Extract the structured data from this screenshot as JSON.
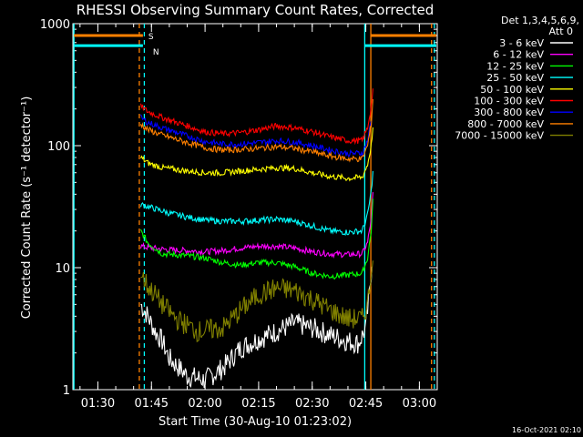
{
  "chart_data": {
    "type": "line",
    "title": "RHESSI Observing Summary Count Rates, Corrected",
    "xlabel": "Start Time (30-Aug-10 01:23:02)",
    "ylabel": "Corrected Count Rate (s⁻¹ detector⁻¹)",
    "yscale": "log",
    "ylim": [
      1,
      1000
    ],
    "xlim_minutes": [
      83,
      185
    ],
    "x_ticks": [
      {
        "m": 90,
        "label": "01:30"
      },
      {
        "m": 105,
        "label": "01:45"
      },
      {
        "m": 120,
        "label": "02:00"
      },
      {
        "m": 135,
        "label": "02:15"
      },
      {
        "m": 150,
        "label": "02:30"
      },
      {
        "m": 165,
        "label": "02:45"
      },
      {
        "m": 180,
        "label": "03:00"
      }
    ],
    "y_ticks": [
      {
        "v": 1,
        "label": "1"
      },
      {
        "v": 10,
        "label": "10"
      },
      {
        "v": 100,
        "label": "100"
      },
      {
        "v": 1000,
        "label": "1000"
      }
    ],
    "legend_title": [
      "Det 1,3,4,5,6,9,",
      "Att 0"
    ],
    "legend_position": "right",
    "series": [
      {
        "name": "3 - 6 keV",
        "color": "#ffffff",
        "points": [
          [
            102,
            5
          ],
          [
            104,
            4
          ],
          [
            106,
            3
          ],
          [
            108,
            2.5
          ],
          [
            110,
            1.8
          ],
          [
            115,
            1.3
          ],
          [
            120,
            1.2
          ],
          [
            125,
            1.5
          ],
          [
            130,
            2.2
          ],
          [
            135,
            2.6
          ],
          [
            140,
            3.0
          ],
          [
            145,
            3.5
          ],
          [
            150,
            3.2
          ],
          [
            155,
            2.8
          ],
          [
            160,
            2.5
          ],
          [
            163,
            2.4
          ],
          [
            165,
            3.2
          ],
          [
            166,
            6
          ],
          [
            166.8,
            12
          ]
        ]
      },
      {
        "name": "6 - 12 keV",
        "color": "#ff00ff",
        "points": [
          [
            102,
            15
          ],
          [
            105,
            14.5
          ],
          [
            110,
            14
          ],
          [
            115,
            13.8
          ],
          [
            120,
            13.5
          ],
          [
            125,
            13.8
          ],
          [
            130,
            14.5
          ],
          [
            135,
            15
          ],
          [
            140,
            15
          ],
          [
            145,
            14.5
          ],
          [
            150,
            13.5
          ],
          [
            155,
            13
          ],
          [
            160,
            12.8
          ],
          [
            164,
            13
          ],
          [
            165.5,
            16
          ],
          [
            166.5,
            25
          ],
          [
            167,
            40
          ]
        ]
      },
      {
        "name": "12 - 25 keV",
        "color": "#00ff00",
        "points": [
          [
            102,
            20
          ],
          [
            104,
            16
          ],
          [
            108,
            13
          ],
          [
            115,
            12.5
          ],
          [
            120,
            12
          ],
          [
            125,
            11
          ],
          [
            130,
            10.5
          ],
          [
            135,
            11
          ],
          [
            140,
            11
          ],
          [
            145,
            10.2
          ],
          [
            150,
            9
          ],
          [
            155,
            8.5
          ],
          [
            160,
            8.7
          ],
          [
            164,
            9
          ],
          [
            165.5,
            12
          ],
          [
            166.5,
            20
          ],
          [
            167,
            35
          ]
        ]
      },
      {
        "name": "25 - 50 keV",
        "color": "#00ffff",
        "points": [
          [
            102,
            33
          ],
          [
            105,
            31
          ],
          [
            110,
            28
          ],
          [
            115,
            26
          ],
          [
            120,
            24.5
          ],
          [
            125,
            24
          ],
          [
            130,
            24
          ],
          [
            135,
            24.5
          ],
          [
            140,
            25
          ],
          [
            145,
            24
          ],
          [
            150,
            22
          ],
          [
            155,
            20
          ],
          [
            160,
            19.5
          ],
          [
            164,
            20
          ],
          [
            165.5,
            27
          ],
          [
            166.5,
            42
          ],
          [
            167,
            60
          ]
        ]
      },
      {
        "name": "50 - 100 keV",
        "color": "#ffff00",
        "points": [
          [
            102,
            80
          ],
          [
            104,
            72
          ],
          [
            108,
            66
          ],
          [
            115,
            62
          ],
          [
            120,
            60
          ],
          [
            125,
            60
          ],
          [
            130,
            62
          ],
          [
            135,
            64
          ],
          [
            140,
            66
          ],
          [
            145,
            65
          ],
          [
            150,
            60
          ],
          [
            155,
            56
          ],
          [
            160,
            54
          ],
          [
            164,
            55
          ],
          [
            165.5,
            70
          ],
          [
            166.5,
            100
          ],
          [
            167,
            140
          ]
        ]
      },
      {
        "name": "100 - 300 keV",
        "color": "#ff0000",
        "points": [
          [
            102,
            210
          ],
          [
            104,
            190
          ],
          [
            108,
            170
          ],
          [
            115,
            145
          ],
          [
            120,
            130
          ],
          [
            125,
            125
          ],
          [
            130,
            128
          ],
          [
            135,
            135
          ],
          [
            140,
            145
          ],
          [
            145,
            140
          ],
          [
            150,
            130
          ],
          [
            155,
            118
          ],
          [
            160,
            110
          ],
          [
            164,
            110
          ],
          [
            165.5,
            140
          ],
          [
            166.5,
            210
          ],
          [
            167,
            290
          ]
        ]
      },
      {
        "name": "300 - 800 keV",
        "color": "#0000ff",
        "points": [
          [
            102,
            170
          ],
          [
            104,
            155
          ],
          [
            108,
            140
          ],
          [
            115,
            120
          ],
          [
            120,
            108
          ],
          [
            125,
            103
          ],
          [
            130,
            103
          ],
          [
            135,
            106
          ],
          [
            140,
            110
          ],
          [
            145,
            107
          ],
          [
            150,
            100
          ],
          [
            155,
            92
          ],
          [
            160,
            86
          ],
          [
            164,
            87
          ],
          [
            165.5,
            110
          ],
          [
            166.5,
            160
          ]
        ]
      },
      {
        "name": "800 - 7000 keV",
        "color": "#ff8000",
        "points": [
          [
            102,
            150
          ],
          [
            104,
            135
          ],
          [
            108,
            122
          ],
          [
            115,
            106
          ],
          [
            120,
            96
          ],
          [
            125,
            92
          ],
          [
            130,
            93
          ],
          [
            135,
            95
          ],
          [
            140,
            98
          ],
          [
            145,
            95
          ],
          [
            150,
            89
          ],
          [
            155,
            82
          ],
          [
            160,
            78
          ],
          [
            164,
            78
          ],
          [
            165.5,
            100
          ],
          [
            166.5,
            150
          ],
          [
            167,
            240
          ]
        ]
      },
      {
        "name": "7000 - 15000 keV",
        "color": "#808000",
        "points": [
          [
            102,
            9
          ],
          [
            104,
            7
          ],
          [
            106,
            6
          ],
          [
            108,
            5
          ],
          [
            112,
            3.8
          ],
          [
            118,
            3.0
          ],
          [
            125,
            3.2
          ],
          [
            130,
            4.5
          ],
          [
            135,
            6
          ],
          [
            140,
            6.8
          ],
          [
            145,
            6.5
          ],
          [
            150,
            5.5
          ],
          [
            155,
            4.5
          ],
          [
            160,
            3.8
          ],
          [
            164,
            3.8
          ],
          [
            165.5,
            5
          ],
          [
            166.5,
            9
          ],
          [
            167,
            14
          ]
        ]
      }
    ],
    "flags": [
      {
        "label": "S",
        "color": "#ff8000",
        "bars": [
          [
            83.3,
            102.6
          ],
          [
            166.4,
            185
          ]
        ],
        "value": 800
      },
      {
        "label": "N",
        "color": "#00ffff",
        "bars": [
          [
            83.3,
            102.6
          ],
          [
            164.7,
            185
          ]
        ],
        "value": 660
      }
    ],
    "vlines": [
      {
        "m": 83.3,
        "color": "#00ffff",
        "style": "solid"
      },
      {
        "m": 101.6,
        "color": "#ff8000",
        "style": "dashed"
      },
      {
        "m": 103.0,
        "color": "#00ffff",
        "style": "dashed"
      },
      {
        "m": 164.7,
        "color": "#00ffff",
        "style": "solid"
      },
      {
        "m": 166.4,
        "color": "#ff8000",
        "style": "solid"
      },
      {
        "m": 183.4,
        "color": "#ff8000",
        "style": "dashed"
      },
      {
        "m": 184.2,
        "color": "#00ffff",
        "style": "dashed"
      }
    ]
  },
  "footer": {
    "timestamp": "16-Oct-2021 02:10"
  }
}
